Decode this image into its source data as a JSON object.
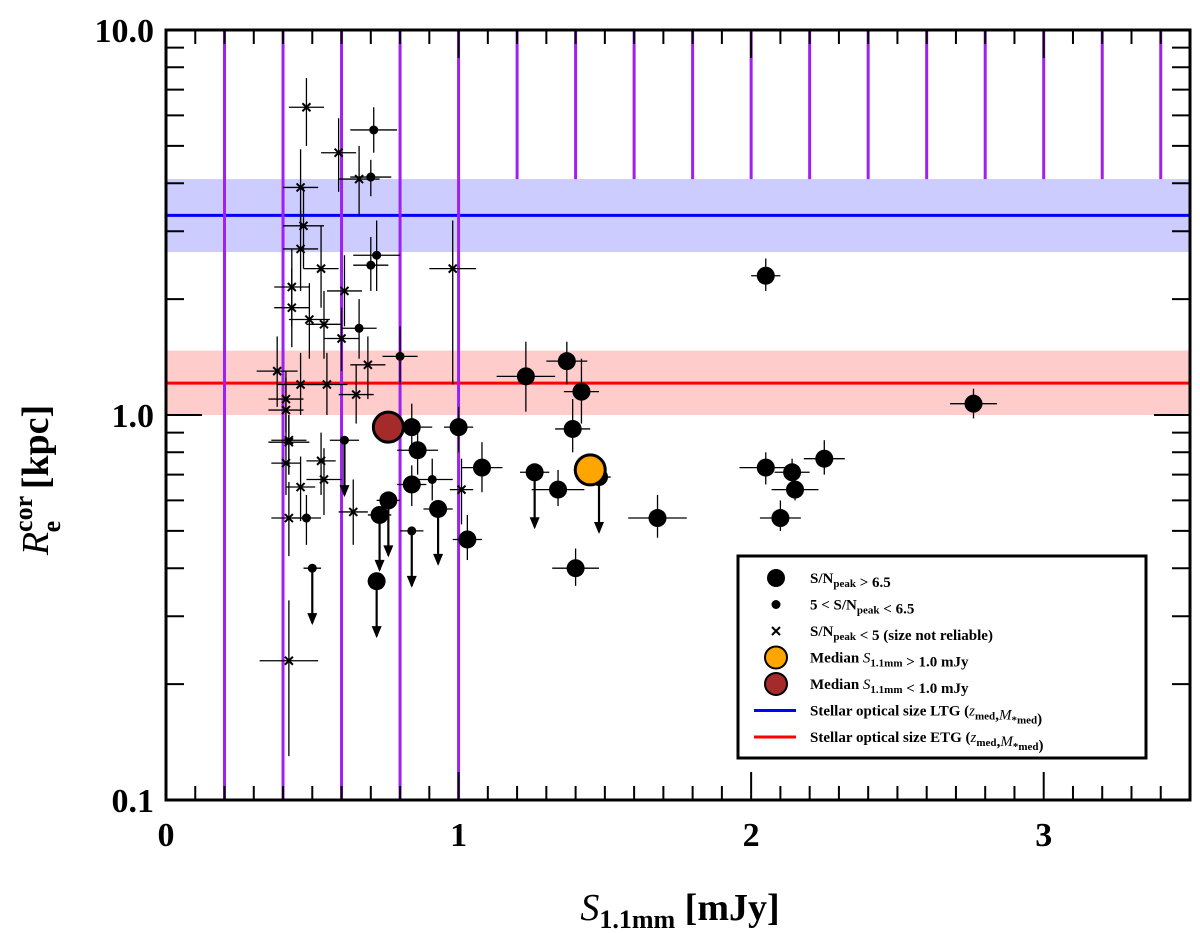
{
  "chart_data": {
    "type": "scatter",
    "xlabel": {
      "main": "S",
      "sub": "1.1mm",
      "unit": " [mJy]"
    },
    "ylabel": {
      "main": "R",
      "sub": "e",
      "sup": "cor",
      "unit": " [kpc]"
    },
    "xlim": [
      0,
      3.5
    ],
    "ylim": [
      0.1,
      10
    ],
    "yscale": "log",
    "x_ticks": [
      0,
      1,
      2,
      3
    ],
    "x_tick_labels": [
      "0",
      "1",
      "2",
      "3"
    ],
    "y_ticks": [
      0.1,
      1,
      10
    ],
    "y_tick_labels": [
      "0.1",
      "1.0",
      "10.0"
    ],
    "completeness_full_lines": [
      0.2,
      0.4,
      0.6,
      0.8,
      1.0
    ],
    "completeness_partial_lines": [
      1.2,
      1.4,
      1.6,
      1.8,
      2.0,
      2.2,
      2.4,
      2.6,
      2.8,
      3.0,
      3.2,
      3.4
    ],
    "completeness_partial_top": 4.1,
    "bands": [
      {
        "name": "Stellar optical size LTG",
        "value": 3.3,
        "low": 2.65,
        "high": 4.1,
        "line_color": "#0000ff",
        "fill_color": "#ccccff"
      },
      {
        "name": "Stellar optical size ETG",
        "value": 1.21,
        "low": 1.0,
        "high": 1.47,
        "line_color": "#ff0000",
        "fill_color": "#ffcccc"
      }
    ],
    "series": [
      {
        "name": "S/N_peak > 6.5",
        "marker": "large-circle",
        "points": [
          {
            "x": 2.05,
            "y": 2.3,
            "xerr": 0.05,
            "ylo": 2.1,
            "yhi": 2.55
          },
          {
            "x": 1.37,
            "y": 1.38,
            "xerr": 0.07,
            "ylo": 1.2,
            "yhi": 1.55
          },
          {
            "x": 1.23,
            "y": 1.26,
            "xerr": 0.1,
            "ylo": 1.02,
            "yhi": 1.55
          },
          {
            "x": 1.42,
            "y": 1.15,
            "xerr": 0.06,
            "ylo": 0.95,
            "yhi": 1.4
          },
          {
            "x": 2.76,
            "y": 1.07,
            "xerr": 0.08,
            "ylo": 0.98,
            "yhi": 1.17
          },
          {
            "x": 1.39,
            "y": 0.92,
            "xerr": 0.06,
            "ylo": 0.8,
            "yhi": 1.1
          },
          {
            "x": 0.84,
            "y": 0.93,
            "xerr": 0.07,
            "ylo": 0.8,
            "yhi": 1.07
          },
          {
            "x": 1.0,
            "y": 0.93,
            "xerr": 0.05,
            "ylo": 0.8,
            "yhi": 1.05
          },
          {
            "x": 0.86,
            "y": 0.81,
            "xerr": 0.07,
            "ylo": 0.7,
            "yhi": 0.93
          },
          {
            "x": 2.25,
            "y": 0.77,
            "xerr": 0.07,
            "ylo": 0.7,
            "yhi": 0.86
          },
          {
            "x": 1.08,
            "y": 0.73,
            "xerr": 0.07,
            "ylo": 0.63,
            "yhi": 0.85
          },
          {
            "x": 2.05,
            "y": 0.73,
            "xerr": 0.09,
            "ylo": 0.66,
            "yhi": 0.8
          },
          {
            "x": 2.14,
            "y": 0.71,
            "xerr": 0.06,
            "ylo": 0.65,
            "yhi": 0.77
          },
          {
            "x": 1.26,
            "y": 0.71,
            "xerr": 0.05,
            "upper": true
          },
          {
            "x": 1.48,
            "y": 0.69,
            "xerr": 0.04,
            "upper": true
          },
          {
            "x": 0.84,
            "y": 0.66,
            "xerr": 0.05,
            "ylo": 0.58,
            "yhi": 0.74
          },
          {
            "x": 1.34,
            "y": 0.64,
            "xerr": 0.09,
            "ylo": 0.58,
            "yhi": 0.72
          },
          {
            "x": 2.15,
            "y": 0.64,
            "xerr": 0.08,
            "ylo": 0.6,
            "yhi": 0.69
          },
          {
            "x": 0.76,
            "y": 0.6,
            "xerr": 0.04,
            "upper": true
          },
          {
            "x": 0.93,
            "y": 0.57,
            "xerr": 0.05,
            "upper": true
          },
          {
            "x": 0.73,
            "y": 0.55,
            "xerr": 0.04,
            "upper": true
          },
          {
            "x": 2.1,
            "y": 0.54,
            "xerr": 0.07,
            "ylo": 0.5,
            "yhi": 0.6
          },
          {
            "x": 1.68,
            "y": 0.54,
            "xerr": 0.1,
            "ylo": 0.48,
            "yhi": 0.62
          },
          {
            "x": 1.03,
            "y": 0.475,
            "xerr": 0.05,
            "ylo": 0.42,
            "yhi": 0.55
          },
          {
            "x": 1.4,
            "y": 0.4,
            "xerr": 0.08,
            "ylo": 0.36,
            "yhi": 0.45
          },
          {
            "x": 0.72,
            "y": 0.37,
            "xerr": 0.03,
            "upper": true
          }
        ]
      },
      {
        "name": "5 < S/N_peak < 6.5",
        "marker": "small-circle",
        "points": [
          {
            "x": 0.71,
            "y": 5.5,
            "xerr": 0.08,
            "ylo": 4.8,
            "yhi": 6.3
          },
          {
            "x": 0.7,
            "y": 4.15,
            "xerr": 0.07,
            "ylo": 3.7,
            "yhi": 4.6
          },
          {
            "x": 0.72,
            "y": 2.6,
            "xerr": 0.08,
            "ylo": 2.1,
            "yhi": 3.2
          },
          {
            "x": 0.7,
            "y": 2.45,
            "xerr": 0.06,
            "ylo": 2.1,
            "yhi": 2.9
          },
          {
            "x": 0.66,
            "y": 1.68,
            "xerr": 0.06,
            "ylo": 1.4,
            "yhi": 2.0
          },
          {
            "x": 0.8,
            "y": 1.42,
            "xerr": 0.06,
            "ylo": 1.2,
            "yhi": 1.7
          },
          {
            "x": 0.61,
            "y": 0.86,
            "xerr": 0.05,
            "upper": true
          },
          {
            "x": 0.91,
            "y": 0.68,
            "xerr": 0.07,
            "ylo": 0.6,
            "yhi": 0.77
          },
          {
            "x": 0.48,
            "y": 0.54,
            "xerr": 0.05,
            "ylo": 0.46,
            "yhi": 0.62
          },
          {
            "x": 0.84,
            "y": 0.5,
            "xerr": 0.04,
            "upper": true
          },
          {
            "x": 0.5,
            "y": 0.4,
            "xerr": 0.03,
            "upper": true
          }
        ]
      },
      {
        "name": "S/N_peak < 5 (size not reliable)",
        "marker": "cross",
        "points": [
          {
            "x": 0.48,
            "y": 6.3,
            "xerr": 0.06,
            "ylo": 5.0,
            "yhi": 7.5
          },
          {
            "x": 0.59,
            "y": 4.8,
            "xerr": 0.06,
            "ylo": 3.8,
            "yhi": 5.9
          },
          {
            "x": 0.66,
            "y": 4.1,
            "xerr": 0.07,
            "ylo": 3.3,
            "yhi": 5.0
          },
          {
            "x": 0.46,
            "y": 3.9,
            "xerr": 0.06,
            "ylo": 3.0,
            "yhi": 4.9
          },
          {
            "x": 0.47,
            "y": 3.1,
            "xerr": 0.07,
            "ylo": 2.4,
            "yhi": 3.9
          },
          {
            "x": 0.46,
            "y": 2.7,
            "xerr": 0.06,
            "ylo": 2.1,
            "yhi": 3.4
          },
          {
            "x": 0.98,
            "y": 2.4,
            "xerr": 0.08,
            "ylo": 1.2,
            "yhi": 3.2
          },
          {
            "x": 0.53,
            "y": 2.4,
            "xerr": 0.06,
            "ylo": 1.9,
            "yhi": 3.1
          },
          {
            "x": 0.43,
            "y": 2.15,
            "xerr": 0.06,
            "ylo": 1.7,
            "yhi": 2.7
          },
          {
            "x": 0.61,
            "y": 2.1,
            "xerr": 0.06,
            "ylo": 1.7,
            "yhi": 2.6
          },
          {
            "x": 0.43,
            "y": 1.9,
            "xerr": 0.06,
            "ylo": 1.5,
            "yhi": 2.4
          },
          {
            "x": 0.49,
            "y": 1.77,
            "xerr": 0.07,
            "ylo": 1.4,
            "yhi": 2.2
          },
          {
            "x": 0.54,
            "y": 1.72,
            "xerr": 0.06,
            "ylo": 1.4,
            "yhi": 2.1
          },
          {
            "x": 0.6,
            "y": 1.58,
            "xerr": 0.06,
            "ylo": 1.3,
            "yhi": 1.9
          },
          {
            "x": 0.69,
            "y": 1.35,
            "xerr": 0.06,
            "ylo": 1.1,
            "yhi": 1.6
          },
          {
            "x": 0.38,
            "y": 1.3,
            "xerr": 0.07,
            "ylo": 1.05,
            "yhi": 1.6
          },
          {
            "x": 0.46,
            "y": 1.2,
            "xerr": 0.08,
            "ylo": 1.0,
            "yhi": 1.45
          },
          {
            "x": 0.55,
            "y": 1.2,
            "xerr": 0.07,
            "ylo": 1.0,
            "yhi": 1.45
          },
          {
            "x": 0.41,
            "y": 1.1,
            "xerr": 0.06,
            "ylo": 0.9,
            "yhi": 1.3
          },
          {
            "x": 0.65,
            "y": 1.13,
            "xerr": 0.06,
            "ylo": 0.95,
            "yhi": 1.35
          },
          {
            "x": 0.41,
            "y": 1.03,
            "xerr": 0.06,
            "ylo": 0.85,
            "yhi": 1.25
          },
          {
            "x": 0.42,
            "y": 0.86,
            "xerr": 0.06,
            "ylo": 0.7,
            "yhi": 1.0
          },
          {
            "x": 0.42,
            "y": 0.85,
            "xerr": 0.07,
            "ylo": 0.7,
            "yhi": 1.0
          },
          {
            "x": 0.53,
            "y": 0.76,
            "xerr": 0.05,
            "ylo": 0.62,
            "yhi": 0.9
          },
          {
            "x": 0.54,
            "y": 0.68,
            "xerr": 0.06,
            "ylo": 0.55,
            "yhi": 0.82
          },
          {
            "x": 0.41,
            "y": 0.75,
            "xerr": 0.05,
            "ylo": 0.62,
            "yhi": 0.88
          },
          {
            "x": 0.46,
            "y": 0.65,
            "xerr": 0.05,
            "ylo": 0.53,
            "yhi": 0.78
          },
          {
            "x": 0.64,
            "y": 0.56,
            "xerr": 0.05,
            "ylo": 0.46,
            "yhi": 0.68
          },
          {
            "x": 1.01,
            "y": 0.64,
            "xerr": 0.04,
            "ylo": 0.52,
            "yhi": 0.77
          },
          {
            "x": 0.42,
            "y": 0.54,
            "xerr": 0.06,
            "ylo": 0.43,
            "yhi": 0.67
          },
          {
            "x": 0.42,
            "y": 0.23,
            "xerr": 0.1,
            "ylo": 0.13,
            "yhi": 0.33
          }
        ]
      },
      {
        "name": "Median S1.1mm > 1.0 mJy",
        "marker": "big-orange",
        "points": [
          {
            "x": 1.45,
            "y": 0.72
          }
        ]
      },
      {
        "name": "Median S1.1mm < 1.0 mJy",
        "marker": "big-brown",
        "points": [
          {
            "x": 0.76,
            "y": 0.93
          }
        ]
      }
    ],
    "legend": {
      "position": "bottom-right",
      "entries": [
        {
          "marker": "large-circle",
          "parts": [
            [
              "S/N",
              "n"
            ],
            [
              "peak",
              "sub"
            ],
            [
              " > 6.5",
              "n"
            ]
          ]
        },
        {
          "marker": "small-circle",
          "parts": [
            [
              "5 < S/N",
              "n"
            ],
            [
              "peak",
              "sub"
            ],
            [
              " < 6.5",
              "n"
            ]
          ]
        },
        {
          "marker": "cross",
          "parts": [
            [
              "S/N",
              "n"
            ],
            [
              "peak",
              "sub"
            ],
            [
              " < 5 (size not reliable)",
              "n"
            ]
          ]
        },
        {
          "marker": "big-orange",
          "parts": [
            [
              "Median ",
              "n"
            ],
            [
              "S",
              "i"
            ],
            [
              "1.1mm",
              "sub"
            ],
            [
              " > 1.0 mJy",
              "n"
            ]
          ]
        },
        {
          "marker": "big-brown",
          "parts": [
            [
              "Median ",
              "n"
            ],
            [
              "S",
              "i"
            ],
            [
              "1.1mm",
              "sub"
            ],
            [
              " < 1.0 mJy",
              "n"
            ]
          ]
        },
        {
          "marker": "blue-line",
          "parts": [
            [
              "Stellar optical size LTG (",
              "n"
            ],
            [
              "z",
              "i"
            ],
            [
              "med",
              "sub"
            ],
            [
              ",",
              "n"
            ],
            [
              "M",
              "i"
            ],
            [
              "*med",
              "sub"
            ],
            [
              ")",
              "n"
            ]
          ]
        },
        {
          "marker": "red-line",
          "parts": [
            [
              "Stellar optical size ETG (",
              "n"
            ],
            [
              "z",
              "i"
            ],
            [
              "med",
              "sub"
            ],
            [
              ",",
              "n"
            ],
            [
              "M",
              "i"
            ],
            [
              "*med",
              "sub"
            ],
            [
              ")",
              "n"
            ]
          ]
        }
      ]
    },
    "colors": {
      "completeness": "#a020f0",
      "orange": "#ffa500",
      "brown": "#a52a2a",
      "black": "#000000"
    }
  }
}
